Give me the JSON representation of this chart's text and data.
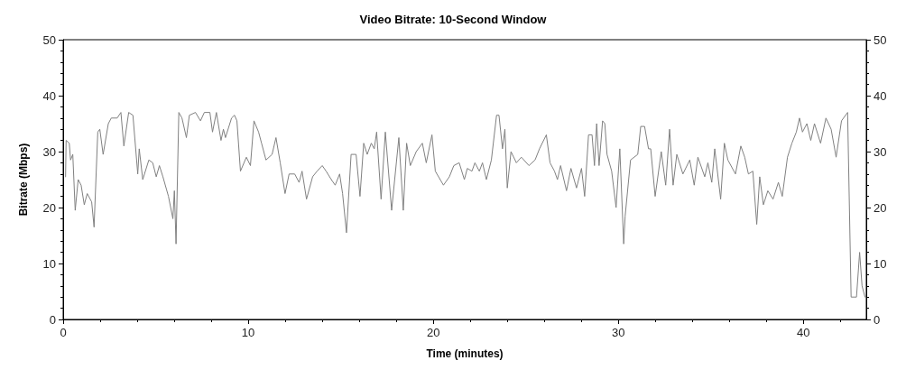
{
  "chart_data": {
    "type": "line",
    "title": "Video Bitrate: 10-Second Window",
    "xlabel": "Time (minutes)",
    "ylabel": "Bitrate (Mbps)",
    "xlim": [
      0,
      43.4
    ],
    "xticks": [
      0,
      10,
      20,
      30,
      40
    ],
    "ylim": [
      0,
      50
    ],
    "yticks": [
      0,
      10,
      20,
      30,
      40,
      50
    ],
    "y2lim": [
      0,
      50
    ],
    "y2ticks": [
      0,
      10,
      20,
      30,
      40,
      50
    ],
    "grid": false,
    "marker": "none",
    "line_style": "solid",
    "series": [
      {
        "color": "#808080",
        "x": [
          0.13,
          0.16,
          0.33,
          0.4,
          0.52,
          0.65,
          0.81,
          0.97,
          1.14,
          1.3,
          1.54,
          1.67,
          1.87,
          1.98,
          2.16,
          2.44,
          2.6,
          2.92,
          3.12,
          3.28,
          3.54,
          3.77,
          4.03,
          4.11,
          4.3,
          4.63,
          4.84,
          5.03,
          5.2,
          5.39,
          5.69,
          5.93,
          6.01,
          6.1,
          6.25,
          6.42,
          6.66,
          6.82,
          7.15,
          7.42,
          7.63,
          7.93,
          8.07,
          8.28,
          8.53,
          8.66,
          8.77,
          9.1,
          9.26,
          9.39,
          9.58,
          9.9,
          10.12,
          10.31,
          10.56,
          10.72,
          10.96,
          11.29,
          11.5,
          11.73,
          11.99,
          12.21,
          12.51,
          12.75,
          12.91,
          13.15,
          13.48,
          13.72,
          14.0,
          14.21,
          14.49,
          14.7,
          14.94,
          15.1,
          15.31,
          15.56,
          15.83,
          16.04,
          16.24,
          16.43,
          16.65,
          16.81,
          16.94,
          17.18,
          17.41,
          17.75,
          18.14,
          18.38,
          18.56,
          18.76,
          19.08,
          19.41,
          19.62,
          19.93,
          20.11,
          20.55,
          20.87,
          21.11,
          21.4,
          21.68,
          21.84,
          22.09,
          22.25,
          22.49,
          22.66,
          22.87,
          23.14,
          23.42,
          23.55,
          23.74,
          23.87,
          24.0,
          24.2,
          24.49,
          24.76,
          25.17,
          25.5,
          25.74,
          26.11,
          26.31,
          26.55,
          26.71,
          26.88,
          27.2,
          27.44,
          27.74,
          28.01,
          28.18,
          28.39,
          28.58,
          28.71,
          28.83,
          28.96,
          29.15,
          29.27,
          29.39,
          29.64,
          29.88,
          30.08,
          30.29,
          30.37,
          30.66,
          31.05,
          31.21,
          31.42,
          31.63,
          31.75,
          31.99,
          32.32,
          32.56,
          32.77,
          32.96,
          33.16,
          33.49,
          33.86,
          34.1,
          34.3,
          34.67,
          34.84,
          35.05,
          35.21,
          35.53,
          35.73,
          35.92,
          36.33,
          36.62,
          36.83,
          37.03,
          37.27,
          37.48,
          37.64,
          37.84,
          38.08,
          38.36,
          38.65,
          38.86,
          39.14,
          39.38,
          39.62,
          39.79,
          39.95,
          40.19,
          40.4,
          40.6,
          40.93,
          41.22,
          41.5,
          41.77,
          42.06,
          42.39,
          42.58,
          42.87,
          43.04,
          43.17,
          43.33
        ],
        "values": [
          25.5,
          32,
          31.5,
          28.5,
          29.5,
          19.5,
          25,
          24,
          20.5,
          22.5,
          21,
          16.5,
          33.5,
          34,
          29.5,
          35,
          36,
          36,
          37,
          31,
          37,
          36.5,
          26,
          30.5,
          25,
          28.5,
          28,
          25.5,
          27.5,
          25.5,
          22,
          18,
          23,
          13.5,
          37,
          36,
          32.5,
          36.5,
          37,
          35.5,
          37,
          37,
          33.5,
          37,
          32,
          34,
          32.5,
          36,
          36.5,
          35.5,
          26.5,
          29,
          27.5,
          35.5,
          33.5,
          31.5,
          28.5,
          29.5,
          32.5,
          28,
          22.5,
          26,
          26,
          24.5,
          26.5,
          21.5,
          25.5,
          26.5,
          27.5,
          26.5,
          25,
          24,
          26,
          22.5,
          15.5,
          29.5,
          29.5,
          22,
          31.5,
          29.5,
          31.5,
          30.5,
          33.5,
          21.5,
          33.5,
          19.5,
          32.5,
          19.5,
          31.5,
          27.5,
          30,
          31.5,
          28,
          33,
          26.5,
          24,
          25.5,
          27.5,
          28,
          25,
          27,
          26.5,
          28,
          26.5,
          28,
          25,
          28.5,
          36.5,
          36.5,
          30.5,
          34,
          23.5,
          30,
          28,
          29,
          27.5,
          28.5,
          30.5,
          33,
          28,
          26.5,
          25,
          27.5,
          23,
          27,
          23.5,
          27,
          22,
          33,
          33,
          27.5,
          35,
          27.5,
          35.5,
          35,
          29.5,
          26.5,
          20,
          30.5,
          13.5,
          18.5,
          28.5,
          29.5,
          34.5,
          34.5,
          30.5,
          30.5,
          22,
          30,
          24,
          34,
          24,
          29.5,
          26,
          28.5,
          24,
          29,
          25.5,
          28,
          24.5,
          30.5,
          21.5,
          31.5,
          28.5,
          26,
          31,
          29,
          26,
          26.5,
          17,
          25.5,
          20.5,
          23,
          21.5,
          24.5,
          22,
          29,
          31.5,
          33.5,
          36,
          33.5,
          35,
          32,
          35,
          31.5,
          36,
          34,
          29,
          35.5,
          37,
          4,
          4,
          12,
          6,
          4
        ]
      }
    ]
  }
}
